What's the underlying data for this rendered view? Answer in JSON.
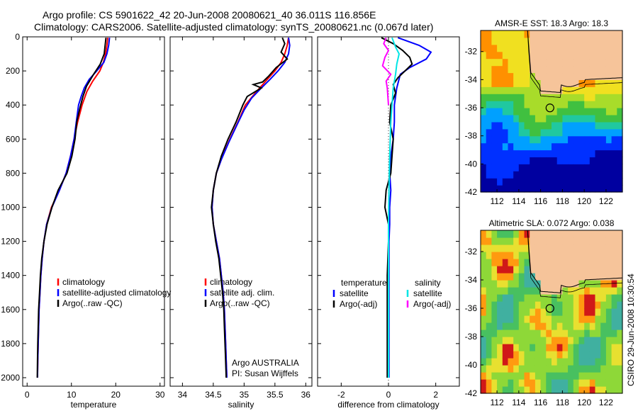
{
  "header": {
    "line1": "Argo profile: CS 5901622_42 20-Jun-2008 20080621_40 36.011S 116.856E",
    "line2": "Climatology: CARS2006. Satellite-adjusted climatology: synTS_20080621.nc (0.067d later)"
  },
  "side_label": "CSIRO 29-Jun-2008 10:30:54",
  "colors": {
    "climatology": "#ff0000",
    "satellite": "#0000ff",
    "argo": "#000000",
    "sat_sal": "#00e5e5",
    "argo_sal": "#ff00ff",
    "land": "#f6c49a"
  },
  "chart_data": [
    {
      "type": "line",
      "xlabel": "temperature",
      "xlim": [
        -1,
        31
      ],
      "ylim": [
        2050,
        0
      ],
      "xticks": [
        0,
        10,
        20,
        30
      ],
      "yticks": [
        0,
        200,
        400,
        600,
        800,
        1000,
        1200,
        1400,
        1600,
        1800,
        2000
      ],
      "legend": [
        "climatology",
        "satellite-adjusted climatology",
        "Argo(..raw -QC)"
      ],
      "series": [
        {
          "name": "climatology",
          "color": "#ff0000",
          "points": [
            [
              18.2,
              5
            ],
            [
              18.0,
              50
            ],
            [
              17.7,
              100
            ],
            [
              17.2,
              150
            ],
            [
              16.4,
              200
            ],
            [
              14.8,
              260
            ],
            [
              13.5,
              320
            ],
            [
              12.4,
              400
            ],
            [
              11.4,
              500
            ],
            [
              10.6,
              600
            ],
            [
              9.8,
              700
            ],
            [
              8.8,
              800
            ],
            [
              7.3,
              900
            ],
            [
              5.5,
              1000
            ],
            [
              4.4,
              1100
            ],
            [
              3.8,
              1200
            ],
            [
              3.4,
              1300
            ],
            [
              3.1,
              1400
            ],
            [
              2.9,
              1500
            ],
            [
              2.7,
              1600
            ],
            [
              2.6,
              1700
            ],
            [
              2.5,
              1800
            ],
            [
              2.4,
              1900
            ],
            [
              2.35,
              2000
            ]
          ]
        },
        {
          "name": "satellite-adjusted climatology",
          "color": "#0000ff",
          "points": [
            [
              18.6,
              5
            ],
            [
              18.4,
              50
            ],
            [
              18.0,
              100
            ],
            [
              17.3,
              150
            ],
            [
              15.7,
              200
            ],
            [
              14.0,
              250
            ],
            [
              12.9,
              300
            ],
            [
              12.2,
              350
            ],
            [
              11.6,
              400
            ],
            [
              11.1,
              500
            ],
            [
              10.6,
              600
            ],
            [
              9.8,
              700
            ],
            [
              8.8,
              800
            ],
            [
              7.3,
              900
            ],
            [
              5.6,
              1000
            ],
            [
              4.4,
              1100
            ],
            [
              3.8,
              1200
            ],
            [
              3.4,
              1300
            ],
            [
              3.1,
              1400
            ],
            [
              2.9,
              1500
            ],
            [
              2.7,
              1600
            ],
            [
              2.6,
              1700
            ],
            [
              2.5,
              1800
            ],
            [
              2.4,
              1900
            ],
            [
              2.35,
              2000
            ]
          ]
        },
        {
          "name": "Argo(..raw -QC)",
          "color": "#000000",
          "points": [
            [
              17.8,
              5
            ],
            [
              17.6,
              50
            ],
            [
              17.4,
              100
            ],
            [
              16.5,
              160
            ],
            [
              15.0,
              220
            ],
            [
              13.4,
              290
            ],
            [
              12.6,
              350
            ],
            [
              11.9,
              420
            ],
            [
              11.2,
              500
            ],
            [
              10.8,
              600
            ],
            [
              10.1,
              700
            ],
            [
              9.0,
              800
            ],
            [
              7.0,
              900
            ],
            [
              5.6,
              1000
            ],
            [
              4.5,
              1100
            ],
            [
              3.8,
              1200
            ],
            [
              3.3,
              1300
            ],
            [
              3.0,
              1400
            ],
            [
              2.8,
              1500
            ],
            [
              2.6,
              1600
            ],
            [
              2.5,
              1700
            ],
            [
              2.4,
              1800
            ],
            [
              2.35,
              1900
            ],
            [
              2.3,
              2000
            ]
          ]
        }
      ]
    },
    {
      "type": "line",
      "xlabel": "salinity",
      "xlim": [
        33.8,
        36.1
      ],
      "ylim": [
        2050,
        0
      ],
      "xticks": [
        34,
        34.5,
        35,
        35.5,
        36
      ],
      "legend": [
        "climatology",
        "satellite adj. clim.",
        "Argo(..raw -QC)"
      ],
      "annotations": [
        "Argo AUSTRALIA",
        "PI: Susan Wijffels"
      ],
      "series": [
        {
          "name": "climatology",
          "color": "#ff0000",
          "points": [
            [
              35.72,
              5
            ],
            [
              35.7,
              50
            ],
            [
              35.66,
              100
            ],
            [
              35.6,
              150
            ],
            [
              35.5,
              200
            ],
            [
              35.35,
              260
            ],
            [
              35.18,
              330
            ],
            [
              35.02,
              400
            ],
            [
              34.9,
              500
            ],
            [
              34.77,
              600
            ],
            [
              34.65,
              700
            ],
            [
              34.55,
              800
            ],
            [
              34.5,
              900
            ],
            [
              34.48,
              1000
            ],
            [
              34.5,
              1100
            ],
            [
              34.55,
              1200
            ],
            [
              34.6,
              1300
            ],
            [
              34.63,
              1400
            ],
            [
              34.66,
              1500
            ],
            [
              34.68,
              1600
            ],
            [
              34.69,
              1700
            ],
            [
              34.7,
              1800
            ],
            [
              34.71,
              1900
            ],
            [
              34.72,
              2000
            ]
          ]
        },
        {
          "name": "satellite adj. clim.",
          "color": "#0000ff",
          "points": [
            [
              35.72,
              5
            ],
            [
              35.74,
              50
            ],
            [
              35.72,
              100
            ],
            [
              35.66,
              150
            ],
            [
              35.55,
              200
            ],
            [
              35.42,
              250
            ],
            [
              35.28,
              300
            ],
            [
              35.12,
              360
            ],
            [
              35.0,
              430
            ],
            [
              34.88,
              520
            ],
            [
              34.75,
              620
            ],
            [
              34.63,
              720
            ],
            [
              34.55,
              800
            ],
            [
              34.5,
              900
            ],
            [
              34.48,
              1000
            ],
            [
              34.5,
              1100
            ],
            [
              34.55,
              1200
            ],
            [
              34.6,
              1300
            ],
            [
              34.63,
              1400
            ],
            [
              34.66,
              1500
            ],
            [
              34.68,
              1600
            ],
            [
              34.69,
              1700
            ],
            [
              34.7,
              1800
            ],
            [
              34.71,
              1900
            ],
            [
              34.72,
              2000
            ]
          ]
        },
        {
          "name": "Argo(..raw -QC)",
          "color": "#000000",
          "points": [
            [
              35.62,
              5
            ],
            [
              35.66,
              40
            ],
            [
              35.6,
              90
            ],
            [
              35.7,
              130
            ],
            [
              35.52,
              180
            ],
            [
              35.4,
              230
            ],
            [
              35.3,
              265
            ],
            [
              35.15,
              280
            ],
            [
              35.28,
              300
            ],
            [
              35.05,
              350
            ],
            [
              34.98,
              400
            ],
            [
              34.87,
              500
            ],
            [
              34.74,
              600
            ],
            [
              34.63,
              700
            ],
            [
              34.55,
              800
            ],
            [
              34.5,
              900
            ],
            [
              34.47,
              1000
            ],
            [
              34.5,
              1100
            ],
            [
              34.54,
              1200
            ],
            [
              34.59,
              1300
            ],
            [
              34.62,
              1400
            ],
            [
              34.65,
              1500
            ],
            [
              34.67,
              1600
            ],
            [
              34.68,
              1700
            ],
            [
              34.69,
              1800
            ],
            [
              34.7,
              1900
            ],
            [
              34.71,
              2000
            ]
          ]
        }
      ]
    },
    {
      "type": "line",
      "xlabel": "difference from climatology",
      "xlim": [
        -3,
        3
      ],
      "ylim": [
        2050,
        0
      ],
      "xticks": [
        -2,
        0,
        2
      ],
      "legend_groups": [
        {
          "title": "temperature",
          "items": [
            "satellite",
            "Argo(-adj)"
          ]
        },
        {
          "title": "salinity",
          "items": [
            "satellite",
            "Argo(-adj)"
          ]
        }
      ],
      "series": [
        {
          "name": "temperature satellite",
          "color": "#0000ff",
          "points": [
            [
              0.4,
              5
            ],
            [
              1.3,
              50
            ],
            [
              1.8,
              90
            ],
            [
              1.6,
              130
            ],
            [
              0.9,
              180
            ],
            [
              0.5,
              220
            ],
            [
              0.35,
              300
            ],
            [
              0.25,
              400
            ],
            [
              0.25,
              500
            ],
            [
              0.2,
              600
            ],
            [
              0.1,
              700
            ],
            [
              0.05,
              800
            ],
            [
              0.1,
              900
            ],
            [
              0.05,
              1000
            ],
            [
              0.05,
              1100
            ],
            [
              0.02,
              1200
            ],
            [
              0.02,
              1400
            ],
            [
              0.02,
              1600
            ],
            [
              0.02,
              1800
            ],
            [
              0.02,
              2000
            ]
          ]
        },
        {
          "name": "temperature Argo(-adj)",
          "color": "#000000",
          "points": [
            [
              -0.3,
              5
            ],
            [
              0.2,
              40
            ],
            [
              0.6,
              80
            ],
            [
              0.9,
              120
            ],
            [
              1.0,
              160
            ],
            [
              0.7,
              200
            ],
            [
              0.4,
              240
            ],
            [
              0.2,
              280
            ],
            [
              0.3,
              330
            ],
            [
              0.1,
              400
            ],
            [
              0.05,
              500
            ],
            [
              0.2,
              600
            ],
            [
              0.15,
              700
            ],
            [
              0.1,
              800
            ],
            [
              -0.1,
              900
            ],
            [
              -0.15,
              1000
            ],
            [
              0.0,
              1100
            ],
            [
              0.0,
              1200
            ],
            [
              -0.05,
              1400
            ],
            [
              -0.05,
              1600
            ],
            [
              -0.05,
              1800
            ],
            [
              -0.05,
              2000
            ]
          ]
        },
        {
          "name": "salinity satellite",
          "color": "#00e5e5",
          "points": [
            [
              0.15,
              5
            ],
            [
              0.3,
              60
            ],
            [
              0.45,
              100
            ],
            [
              0.35,
              160
            ],
            [
              0.3,
              220
            ],
            [
              0.2,
              300
            ],
            [
              0.15,
              400
            ],
            [
              0.1,
              500
            ],
            [
              0.05,
              700
            ],
            [
              0.02,
              900
            ],
            [
              0.0,
              1100
            ],
            [
              0.0,
              1400
            ],
            [
              0.0,
              1700
            ],
            [
              0.0,
              2000
            ]
          ]
        },
        {
          "name": "salinity Argo(-adj)",
          "color": "#ff00ff",
          "points": [
            [
              -0.1,
              5
            ],
            [
              -0.2,
              40
            ],
            [
              0.0,
              80
            ],
            [
              -0.15,
              120
            ],
            [
              -0.25,
              170
            ],
            [
              0.1,
              220
            ],
            [
              -0.1,
              260
            ],
            [
              -0.05,
              300
            ],
            [
              0.0,
              400
            ]
          ]
        }
      ]
    },
    {
      "type": "heatmap",
      "title": "AMSR-E SST: 18.3 Argo: 18.3",
      "xlim": [
        110.5,
        123.5
      ],
      "ylim": [
        -42,
        -30.5
      ],
      "xticks": [
        112,
        114,
        116,
        118,
        120,
        122
      ],
      "yticks": [
        -32,
        -34,
        -36,
        -38,
        -40,
        -42
      ],
      "argo_position": [
        116.856,
        -36.011
      ]
    },
    {
      "type": "heatmap",
      "title": "Altimetric SLA: 0.072 Argo: 0.038",
      "xlim": [
        110.5,
        123.5
      ],
      "ylim": [
        -42,
        -30.5
      ],
      "xticks": [
        112,
        114,
        116,
        118,
        120,
        122
      ],
      "yticks": [
        -32,
        -34,
        -36,
        -38,
        -40,
        -42
      ],
      "argo_position": [
        116.856,
        -36.011
      ]
    }
  ]
}
